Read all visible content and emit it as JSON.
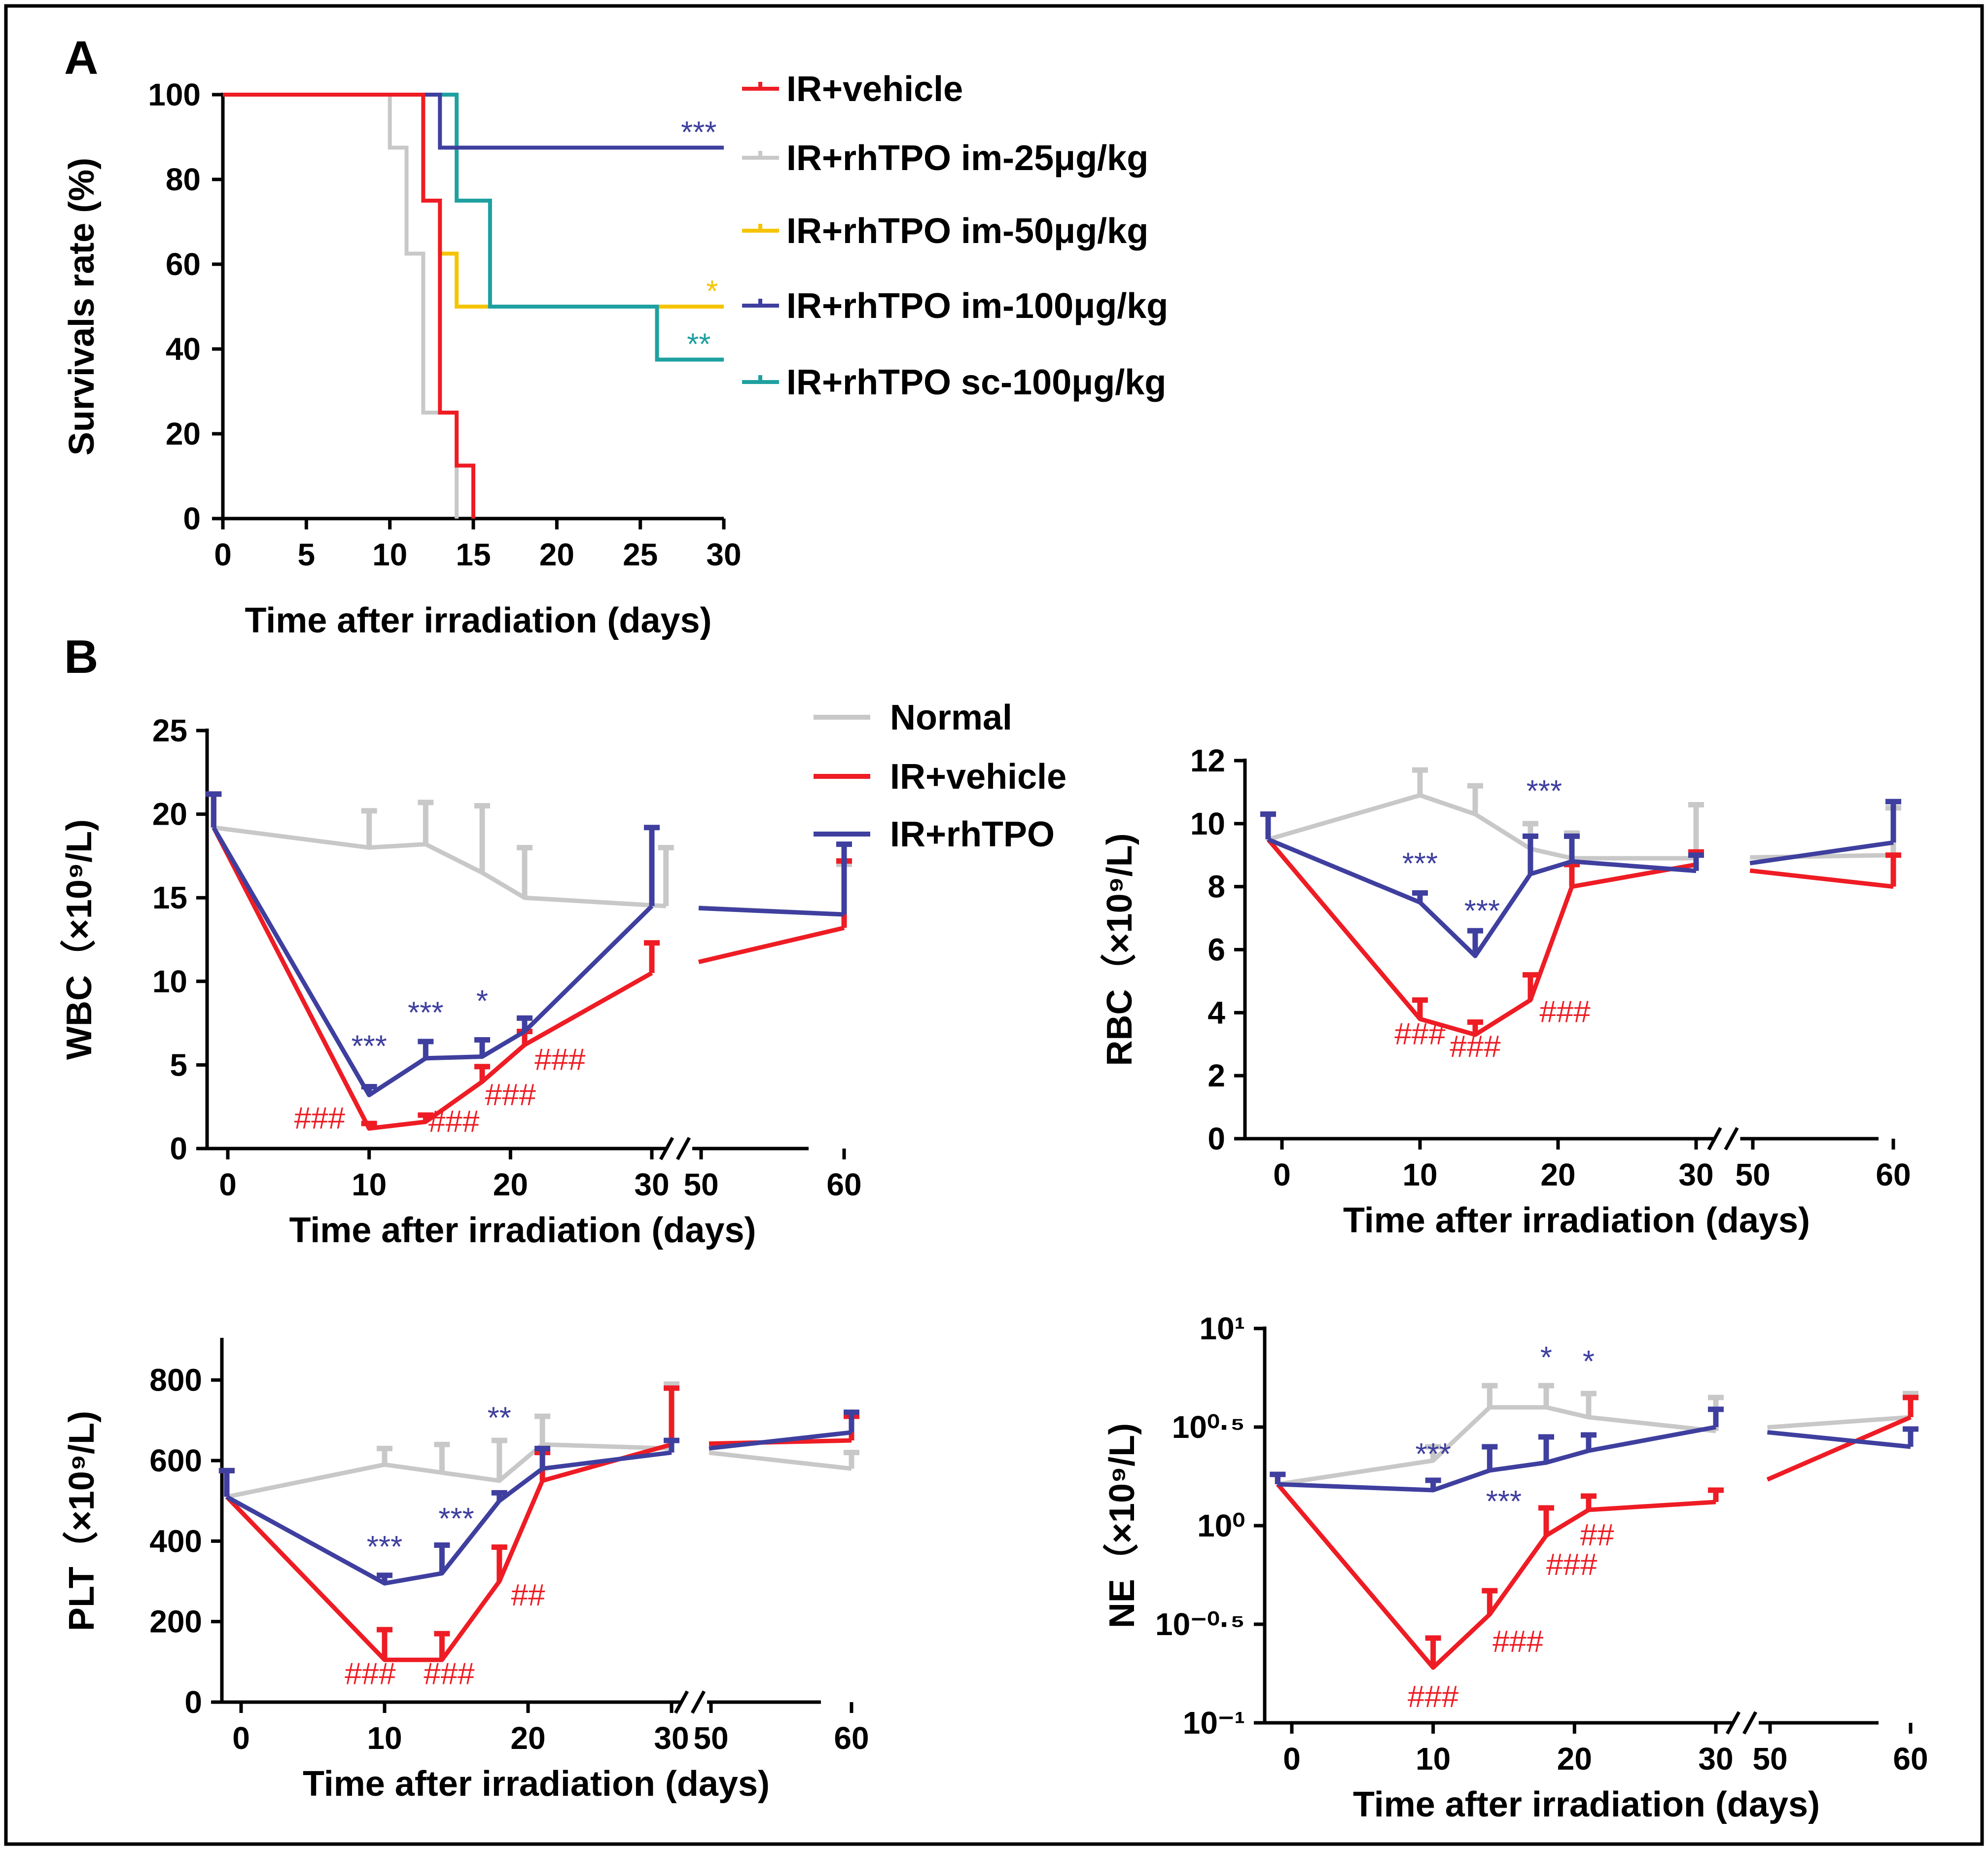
{
  "colors": {
    "vehicle": "#ee1c24",
    "im25": "#c8c8c8",
    "im50": "#f5c400",
    "im100": "#3e3f9e",
    "sc100": "#1fa0a0",
    "normal": "#c8c8c8",
    "rhtpo": "#3e3f9e",
    "hash": "#ee1c24"
  },
  "panel_labels": {
    "a": "A",
    "b": "B"
  },
  "chart_data": [
    {
      "id": "A",
      "type": "line",
      "title": "",
      "xlabel": "Time after irradiation (days)",
      "ylabel": "Survivals rate (%)",
      "xlim": [
        0,
        30
      ],
      "ylim": [
        0,
        100
      ],
      "xticks": [
        0,
        5,
        10,
        15,
        20,
        25,
        30
      ],
      "yticks": [
        0,
        20,
        40,
        60,
        80,
        100
      ],
      "legend": "right",
      "series": [
        {
          "name": "IR+vehicle",
          "color_key": "vehicle",
          "steps": [
            [
              0,
              100
            ],
            [
              12,
              100
            ],
            [
              12,
              75
            ],
            [
              13,
              75
            ],
            [
              13,
              25
            ],
            [
              14,
              25
            ],
            [
              14,
              12.5
            ],
            [
              15,
              12.5
            ],
            [
              15,
              0
            ]
          ]
        },
        {
          "name": "IR+rhTPO im-25μg/kg",
          "color_key": "im25",
          "steps": [
            [
              0,
              100
            ],
            [
              10,
              100
            ],
            [
              10,
              87.5
            ],
            [
              11,
              87.5
            ],
            [
              11,
              62.5
            ],
            [
              12,
              62.5
            ],
            [
              12,
              25
            ],
            [
              13,
              25
            ],
            [
              14,
              25
            ],
            [
              14,
              0
            ]
          ]
        },
        {
          "name": "IR+rhTPO im-50μg/kg",
          "color_key": "im50",
          "steps": [
            [
              0,
              100
            ],
            [
              12,
              100
            ],
            [
              12,
              75
            ],
            [
              13,
              75
            ],
            [
              13,
              62.5
            ],
            [
              14,
              62.5
            ],
            [
              14,
              50
            ],
            [
              30,
              50
            ]
          ]
        },
        {
          "name": "IR+rhTPO im-100μg/kg",
          "color_key": "im100",
          "steps": [
            [
              0,
              100
            ],
            [
              13,
              100
            ],
            [
              13,
              87.5
            ],
            [
              30,
              87.5
            ]
          ]
        },
        {
          "name": "IR+rhTPO sc-100μg/kg",
          "color_key": "sc100",
          "steps": [
            [
              0,
              100
            ],
            [
              14,
              100
            ],
            [
              14,
              75
            ],
            [
              16,
              75
            ],
            [
              16,
              50
            ],
            [
              26,
              50
            ],
            [
              26,
              37.5
            ],
            [
              30,
              37.5
            ]
          ]
        }
      ],
      "annotations": [
        {
          "text": "***",
          "x": 28.5,
          "y": 87.5,
          "color_key": "im100"
        },
        {
          "text": "*",
          "x": 29.3,
          "y": 50,
          "color_key": "im50"
        },
        {
          "text": "**",
          "x": 28.5,
          "y": 37.5,
          "color_key": "sc100"
        }
      ]
    },
    {
      "id": "WBC",
      "type": "line",
      "xlabel": "Time after irradiation (days)",
      "ylabel": "WBC（×10⁹/L)",
      "ylim": [
        0,
        25
      ],
      "yticks": [
        0,
        5,
        10,
        15,
        20,
        25
      ],
      "ytick_labels": [
        "0",
        "5",
        "10",
        "15",
        "20",
        "25"
      ],
      "xticks": [
        0,
        10,
        20,
        30,
        50,
        60
      ],
      "x_break": [
        31,
        49
      ],
      "legend": "top-right",
      "legend_entries": [
        "Normal",
        "IR+vehicle",
        "IR+rhTPO"
      ],
      "series": [
        {
          "name": "Normal",
          "color_key": "normal",
          "x": [
            -1,
            10,
            14,
            18,
            21,
            31,
            60
          ],
          "y": [
            19.2,
            18.0,
            18.2,
            16.5,
            15.0,
            14.5,
            14.0
          ],
          "err": [
            2.0,
            2.2,
            2.5,
            4.0,
            3.0,
            3.5,
            3.0
          ]
        },
        {
          "name": "IR+vehicle",
          "color_key": "vehicle",
          "x": [
            -1,
            10,
            14,
            18,
            21,
            30,
            60
          ],
          "y": [
            19.2,
            1.2,
            1.6,
            4.0,
            6.2,
            10.5,
            13.2
          ],
          "err": [
            2.0,
            0.3,
            0.4,
            0.9,
            0.8,
            1.8,
            4.0
          ]
        },
        {
          "name": "IR+rhTPO",
          "color_key": "rhtpo",
          "x": [
            -1,
            10,
            14,
            18,
            21,
            30,
            60
          ],
          "y": [
            19.2,
            3.2,
            5.4,
            5.5,
            7.0,
            14.5,
            14.0
          ],
          "err": [
            2.0,
            0.5,
            1.0,
            1.0,
            0.8,
            4.7,
            4.2
          ]
        }
      ],
      "annotations": [
        {
          "text": "***",
          "x": 10,
          "y": 5.5,
          "color_key": "rhtpo"
        },
        {
          "text": "***",
          "x": 14,
          "y": 7.5,
          "color_key": "rhtpo"
        },
        {
          "text": "*",
          "x": 18,
          "y": 8.2,
          "color_key": "rhtpo"
        },
        {
          "text": "###",
          "x": 6.5,
          "y": 1.2,
          "color_key": "hash"
        },
        {
          "text": "###",
          "x": 16,
          "y": 1.0,
          "color_key": "hash"
        },
        {
          "text": "###",
          "x": 20,
          "y": 2.6,
          "color_key": "hash"
        },
        {
          "text": "###",
          "x": 23.5,
          "y": 4.7,
          "color_key": "hash"
        }
      ]
    },
    {
      "id": "RBC",
      "type": "line",
      "xlabel": "Time after irradiation (days)",
      "ylabel": "RBC（×10⁹/L)",
      "ylim": [
        0,
        12
      ],
      "yticks": [
        0,
        2,
        4,
        6,
        8,
        10,
        12
      ],
      "ytick_labels": [
        "0",
        "2",
        "4",
        "6",
        "8",
        "10",
        "12"
      ],
      "xticks": [
        0,
        10,
        20,
        30,
        50,
        60
      ],
      "x_break": [
        31,
        49
      ],
      "series": [
        {
          "name": "Normal",
          "color_key": "normal",
          "x": [
            -1,
            10,
            14,
            18,
            21,
            30,
            60
          ],
          "y": [
            9.5,
            10.9,
            10.3,
            9.2,
            8.9,
            8.9,
            9.0
          ],
          "err": [
            0.8,
            0.8,
            0.9,
            0.8,
            0.8,
            1.7,
            1.5
          ]
        },
        {
          "name": "IR+vehicle",
          "color_key": "vehicle",
          "x": [
            -1,
            10,
            14,
            18,
            21,
            30,
            60
          ],
          "y": [
            9.5,
            3.8,
            3.3,
            4.4,
            8.0,
            8.7,
            8.0
          ],
          "err": [
            0.8,
            0.6,
            0.4,
            0.8,
            0.7,
            0.4,
            1.0
          ]
        },
        {
          "name": "IR+rhTPO",
          "color_key": "rhtpo",
          "x": [
            -1,
            10,
            14,
            18,
            21,
            30,
            60
          ],
          "y": [
            9.5,
            7.5,
            5.8,
            8.4,
            8.8,
            8.5,
            9.4
          ],
          "err": [
            0.8,
            0.3,
            0.8,
            1.2,
            0.8,
            0.5,
            1.3
          ]
        }
      ],
      "annotations": [
        {
          "text": "***",
          "x": 10,
          "y": 8.4,
          "color_key": "rhtpo"
        },
        {
          "text": "***",
          "x": 14.5,
          "y": 6.9,
          "color_key": "rhtpo"
        },
        {
          "text": "***",
          "x": 19,
          "y": 10.7,
          "color_key": "rhtpo"
        },
        {
          "text": "###",
          "x": 10,
          "y": 3.0,
          "color_key": "hash"
        },
        {
          "text": "###",
          "x": 14,
          "y": 2.6,
          "color_key": "hash"
        },
        {
          "text": "###",
          "x": 20.5,
          "y": 3.7,
          "color_key": "hash"
        }
      ]
    },
    {
      "id": "PLT",
      "type": "line",
      "xlabel": "Time after irradiation (days)",
      "ylabel": "PLT（×10⁹/L)",
      "ylim": [
        0,
        900
      ],
      "yticks": [
        0,
        200,
        400,
        600,
        800
      ],
      "ytick_labels": [
        "0",
        "200",
        "400",
        "600",
        "800"
      ],
      "xticks": [
        0,
        10,
        20,
        30,
        50,
        60
      ],
      "x_break": [
        31,
        49
      ],
      "series": [
        {
          "name": "Normal",
          "color_key": "normal",
          "x": [
            -1,
            10,
            14,
            18,
            21,
            30,
            60
          ],
          "y": [
            510,
            590,
            570,
            550,
            640,
            630,
            580
          ],
          "err": [
            65,
            40,
            70,
            100,
            70,
            160,
            40
          ]
        },
        {
          "name": "IR+vehicle",
          "color_key": "vehicle",
          "x": [
            -1,
            10,
            14,
            18,
            21,
            30,
            60
          ],
          "y": [
            510,
            105,
            105,
            300,
            550,
            640,
            650
          ],
          "err": [
            65,
            75,
            65,
            85,
            70,
            140,
            60
          ]
        },
        {
          "name": "IR+rhTPO",
          "color_key": "rhtpo",
          "x": [
            -1,
            10,
            14,
            18,
            21,
            30,
            60
          ],
          "y": [
            510,
            295,
            320,
            500,
            580,
            620,
            670
          ],
          "err": [
            65,
            20,
            70,
            20,
            50,
            30,
            50
          ]
        }
      ],
      "annotations": [
        {
          "text": "***",
          "x": 10,
          "y": 360,
          "color_key": "rhtpo"
        },
        {
          "text": "***",
          "x": 15,
          "y": 430,
          "color_key": "rhtpo"
        },
        {
          "text": "**",
          "x": 18,
          "y": 680,
          "color_key": "rhtpo"
        },
        {
          "text": "###",
          "x": 9,
          "y": 45,
          "color_key": "hash"
        },
        {
          "text": "###",
          "x": 14.5,
          "y": 45,
          "color_key": "hash"
        },
        {
          "text": "##",
          "x": 20,
          "y": 240,
          "color_key": "hash"
        }
      ]
    },
    {
      "id": "NE",
      "type": "line",
      "yscale": "log10",
      "xlabel": "Time after irradiation (days)",
      "ylabel": "NE（×10⁹/L)",
      "ylim": [
        -1,
        1
      ],
      "yticks": [
        -1,
        -0.5,
        0,
        0.5,
        1
      ],
      "ytick_labels": [
        "10⁻¹",
        "10⁻⁰·⁵",
        "10⁰",
        "10⁰·⁵",
        "10¹"
      ],
      "xticks": [
        0,
        10,
        20,
        30,
        50,
        60
      ],
      "x_break": [
        31,
        49
      ],
      "series": [
        {
          "name": "Normal",
          "color_key": "normal",
          "x": [
            -1,
            10,
            14,
            18,
            21,
            30,
            60
          ],
          "y": [
            0.21,
            0.33,
            0.6,
            0.6,
            0.55,
            0.48,
            0.55
          ],
          "err": [
            0.05,
            0.07,
            0.11,
            0.11,
            0.12,
            0.17,
            0.12
          ]
        },
        {
          "name": "IR+vehicle",
          "color_key": "vehicle",
          "x": [
            -1,
            10,
            14,
            18,
            21,
            30,
            60
          ],
          "y": [
            0.21,
            -0.72,
            -0.45,
            -0.05,
            0.08,
            0.12,
            0.55
          ],
          "err": [
            0.05,
            0.15,
            0.12,
            0.14,
            0.07,
            0.06,
            0.1
          ]
        },
        {
          "name": "IR+rhTPO",
          "color_key": "rhtpo",
          "x": [
            -1,
            10,
            14,
            18,
            21,
            30,
            60
          ],
          "y": [
            0.21,
            0.18,
            0.28,
            0.32,
            0.38,
            0.5,
            0.4
          ],
          "err": [
            0.05,
            0.05,
            0.12,
            0.13,
            0.08,
            0.09,
            0.09
          ]
        }
      ],
      "annotations": [
        {
          "text": "***",
          "x": 10,
          "y": 0.31,
          "color_key": "rhtpo"
        },
        {
          "text": "***",
          "x": 15,
          "y": 0.07,
          "color_key": "rhtpo"
        },
        {
          "text": "*",
          "x": 18,
          "y": 0.8,
          "color_key": "rhtpo"
        },
        {
          "text": "*",
          "x": 21,
          "y": 0.78,
          "color_key": "rhtpo"
        },
        {
          "text": "###",
          "x": 10,
          "y": -0.92,
          "color_key": "hash"
        },
        {
          "text": "###",
          "x": 16,
          "y": -0.64,
          "color_key": "hash"
        },
        {
          "text": "###",
          "x": 19.8,
          "y": -0.25,
          "color_key": "hash"
        },
        {
          "text": "##",
          "x": 21.6,
          "y": -0.1,
          "color_key": "hash"
        }
      ]
    }
  ],
  "legend_a": [
    "IR+vehicle",
    "IR+rhTPO im-25μg/kg",
    "IR+rhTPO im-50μg/kg",
    "IR+rhTPO im-100μg/kg",
    "IR+rhTPO sc-100μg/kg"
  ],
  "legend_b": [
    "Normal",
    "IR+vehicle",
    "IR+rhTPO"
  ]
}
